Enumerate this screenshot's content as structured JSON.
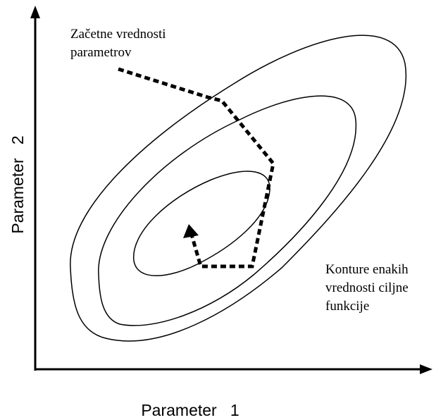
{
  "y_axis_label": "Parameter   2",
  "x_axis_label": "Parameter   1",
  "start_annotation": [
    "Začetne vrednosti",
    "parametrov"
  ],
  "contour_annotation": [
    "Konture enakih",
    "vrednosti ciljne",
    "funkcije"
  ]
}
